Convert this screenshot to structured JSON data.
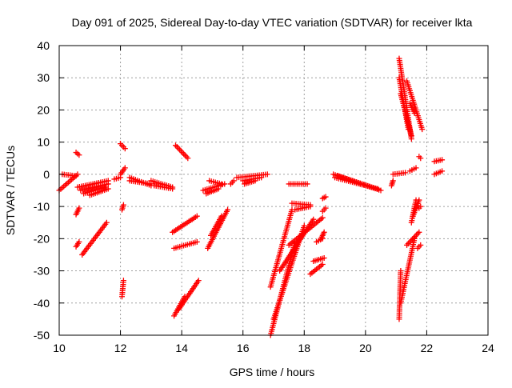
{
  "chart_data": {
    "type": "scatter",
    "title": "Day 091 of 2025, Sidereal Day-to-day VTEC variation (SDTVAR) for receiver lkta",
    "xlabel": "GPS time / hours",
    "ylabel": "SDTVAR / TECUs",
    "xlim": [
      10,
      24
    ],
    "ylim": [
      -50,
      40
    ],
    "xticks": [
      10,
      12,
      14,
      16,
      18,
      20,
      22,
      24
    ],
    "yticks": [
      -50,
      -40,
      -30,
      -20,
      -10,
      0,
      10,
      20,
      30,
      40
    ],
    "grid": true,
    "marker": "+",
    "color": "#ff0000",
    "segments": [
      {
        "x0": 10.0,
        "y0": -5.0,
        "x1": 10.6,
        "y1": 0.0
      },
      {
        "x0": 10.1,
        "y0": 0.0,
        "x1": 10.55,
        "y1": -0.5
      },
      {
        "x0": 10.55,
        "y0": 6.8,
        "x1": 10.65,
        "y1": 6.0
      },
      {
        "x0": 10.6,
        "y0": -4.0,
        "x1": 11.6,
        "y1": -2.0
      },
      {
        "x0": 10.7,
        "y0": -5.0,
        "x1": 11.6,
        "y1": -3.0
      },
      {
        "x0": 10.8,
        "y0": -6.0,
        "x1": 11.5,
        "y1": -4.0
      },
      {
        "x0": 11.0,
        "y0": -6.5,
        "x1": 11.6,
        "y1": -4.5
      },
      {
        "x0": 10.55,
        "y0": -12.5,
        "x1": 10.65,
        "y1": -10.5
      },
      {
        "x0": 10.55,
        "y0": -22.5,
        "x1": 10.65,
        "y1": -21.0
      },
      {
        "x0": 10.75,
        "y0": -25.0,
        "x1": 11.55,
        "y1": -15.0
      },
      {
        "x0": 11.8,
        "y0": -1.5,
        "x1": 12.0,
        "y1": -1.0
      },
      {
        "x0": 12.0,
        "y0": 0.0,
        "x1": 12.15,
        "y1": 2.0
      },
      {
        "x0": 12.0,
        "y0": 9.5,
        "x1": 12.15,
        "y1": 8.0
      },
      {
        "x0": 12.05,
        "y0": -11.0,
        "x1": 12.1,
        "y1": -9.5
      },
      {
        "x0": 12.05,
        "y0": -38.0,
        "x1": 12.1,
        "y1": -33.0
      },
      {
        "x0": 12.3,
        "y0": -2.0,
        "x1": 13.0,
        "y1": -3.0
      },
      {
        "x0": 12.3,
        "y0": -1.0,
        "x1": 13.0,
        "y1": -3.5
      },
      {
        "x0": 13.0,
        "y0": -2.0,
        "x1": 13.7,
        "y1": -4.0
      },
      {
        "x0": 13.1,
        "y0": -3.5,
        "x1": 13.7,
        "y1": -4.5
      },
      {
        "x0": 13.8,
        "y0": 9.0,
        "x1": 14.2,
        "y1": 5.0
      },
      {
        "x0": 13.7,
        "y0": -18.0,
        "x1": 14.5,
        "y1": -13.0
      },
      {
        "x0": 13.75,
        "y0": -23.0,
        "x1": 14.5,
        "y1": -21.0
      },
      {
        "x0": 13.75,
        "y0": -44.0,
        "x1": 14.1,
        "y1": -38.0
      },
      {
        "x0": 13.9,
        "y0": -42.0,
        "x1": 14.55,
        "y1": -33.0
      },
      {
        "x0": 14.7,
        "y0": -5.0,
        "x1": 15.4,
        "y1": -3.0
      },
      {
        "x0": 14.8,
        "y0": -6.0,
        "x1": 15.2,
        "y1": -4.5
      },
      {
        "x0": 14.9,
        "y0": -2.0,
        "x1": 15.3,
        "y1": -3.0
      },
      {
        "x0": 14.85,
        "y0": -23.0,
        "x1": 15.5,
        "y1": -11.0
      },
      {
        "x0": 14.95,
        "y0": -19.0,
        "x1": 15.3,
        "y1": -13.0
      },
      {
        "x0": 15.6,
        "y0": -3.0,
        "x1": 15.7,
        "y1": -2.0
      },
      {
        "x0": 15.8,
        "y0": -1.0,
        "x1": 16.8,
        "y1": 0.0
      },
      {
        "x0": 16.0,
        "y0": -2.0,
        "x1": 16.6,
        "y1": -1.0
      },
      {
        "x0": 16.05,
        "y0": -3.0,
        "x1": 16.4,
        "y1": -2.0
      },
      {
        "x0": 16.9,
        "y0": -50.0,
        "x1": 17.7,
        "y1": -21.0
      },
      {
        "x0": 17.0,
        "y0": -45.0,
        "x1": 18.0,
        "y1": -16.0
      },
      {
        "x0": 16.9,
        "y0": -35.0,
        "x1": 17.6,
        "y1": -11.0
      },
      {
        "x0": 17.2,
        "y0": -30.0,
        "x1": 18.3,
        "y1": -14.0
      },
      {
        "x0": 17.5,
        "y0": -22.0,
        "x1": 18.6,
        "y1": -13.5
      },
      {
        "x0": 17.5,
        "y0": -3.0,
        "x1": 18.1,
        "y1": -3.0
      },
      {
        "x0": 17.6,
        "y0": -9.0,
        "x1": 18.2,
        "y1": -9.5
      },
      {
        "x0": 17.7,
        "y0": -11.0,
        "x1": 18.2,
        "y1": -10.0
      },
      {
        "x0": 18.2,
        "y0": -31.0,
        "x1": 18.6,
        "y1": -28.0
      },
      {
        "x0": 18.3,
        "y0": -27.0,
        "x1": 18.65,
        "y1": -26.0
      },
      {
        "x0": 18.4,
        "y0": -21.0,
        "x1": 18.6,
        "y1": -20.0
      },
      {
        "x0": 18.55,
        "y0": -20.0,
        "x1": 18.65,
        "y1": -18.0
      },
      {
        "x0": 18.6,
        "y0": -7.5,
        "x1": 18.7,
        "y1": -7.0
      },
      {
        "x0": 18.6,
        "y0": -11.5,
        "x1": 18.7,
        "y1": -10.5
      },
      {
        "x0": 18.95,
        "y0": 0.0,
        "x1": 20.5,
        "y1": -5.0
      },
      {
        "x0": 19.0,
        "y0": -1.0,
        "x1": 20.4,
        "y1": -4.5
      },
      {
        "x0": 19.1,
        "y0": -0.5,
        "x1": 20.2,
        "y1": -4.0
      },
      {
        "x0": 20.85,
        "y0": -3.5,
        "x1": 20.9,
        "y1": -2.0
      },
      {
        "x0": 20.9,
        "y0": 0.0,
        "x1": 21.3,
        "y1": 0.5
      },
      {
        "x0": 21.1,
        "y0": 36.0,
        "x1": 21.5,
        "y1": 11.0
      },
      {
        "x0": 21.1,
        "y0": 30.0,
        "x1": 21.4,
        "y1": 14.0
      },
      {
        "x0": 21.15,
        "y0": 25.0,
        "x1": 21.5,
        "y1": 12.0
      },
      {
        "x0": 21.35,
        "y0": 29.0,
        "x1": 21.85,
        "y1": 14.0
      },
      {
        "x0": 21.45,
        "y0": 22.0,
        "x1": 21.6,
        "y1": 19.0
      },
      {
        "x0": 21.1,
        "y0": -45.0,
        "x1": 21.15,
        "y1": -30.0
      },
      {
        "x0": 21.15,
        "y0": -40.0,
        "x1": 21.6,
        "y1": -20.0
      },
      {
        "x0": 21.35,
        "y0": -22.0,
        "x1": 21.75,
        "y1": -18.0
      },
      {
        "x0": 21.5,
        "y0": -15.0,
        "x1": 21.65,
        "y1": -8.0
      },
      {
        "x0": 21.55,
        "y0": -13.0,
        "x1": 21.75,
        "y1": -8.0
      },
      {
        "x0": 21.45,
        "y0": 1.0,
        "x1": 21.65,
        "y1": 2.0
      },
      {
        "x0": 21.75,
        "y0": 5.5,
        "x1": 21.8,
        "y1": 5.0
      },
      {
        "x0": 21.7,
        "y0": -23.0,
        "x1": 21.8,
        "y1": -22.0
      },
      {
        "x0": 21.75,
        "y0": -10.5,
        "x1": 21.8,
        "y1": -10.0
      },
      {
        "x0": 22.25,
        "y0": 4.0,
        "x1": 22.5,
        "y1": 4.5
      },
      {
        "x0": 22.25,
        "y0": 0.0,
        "x1": 22.5,
        "y1": 1.0
      }
    ]
  }
}
